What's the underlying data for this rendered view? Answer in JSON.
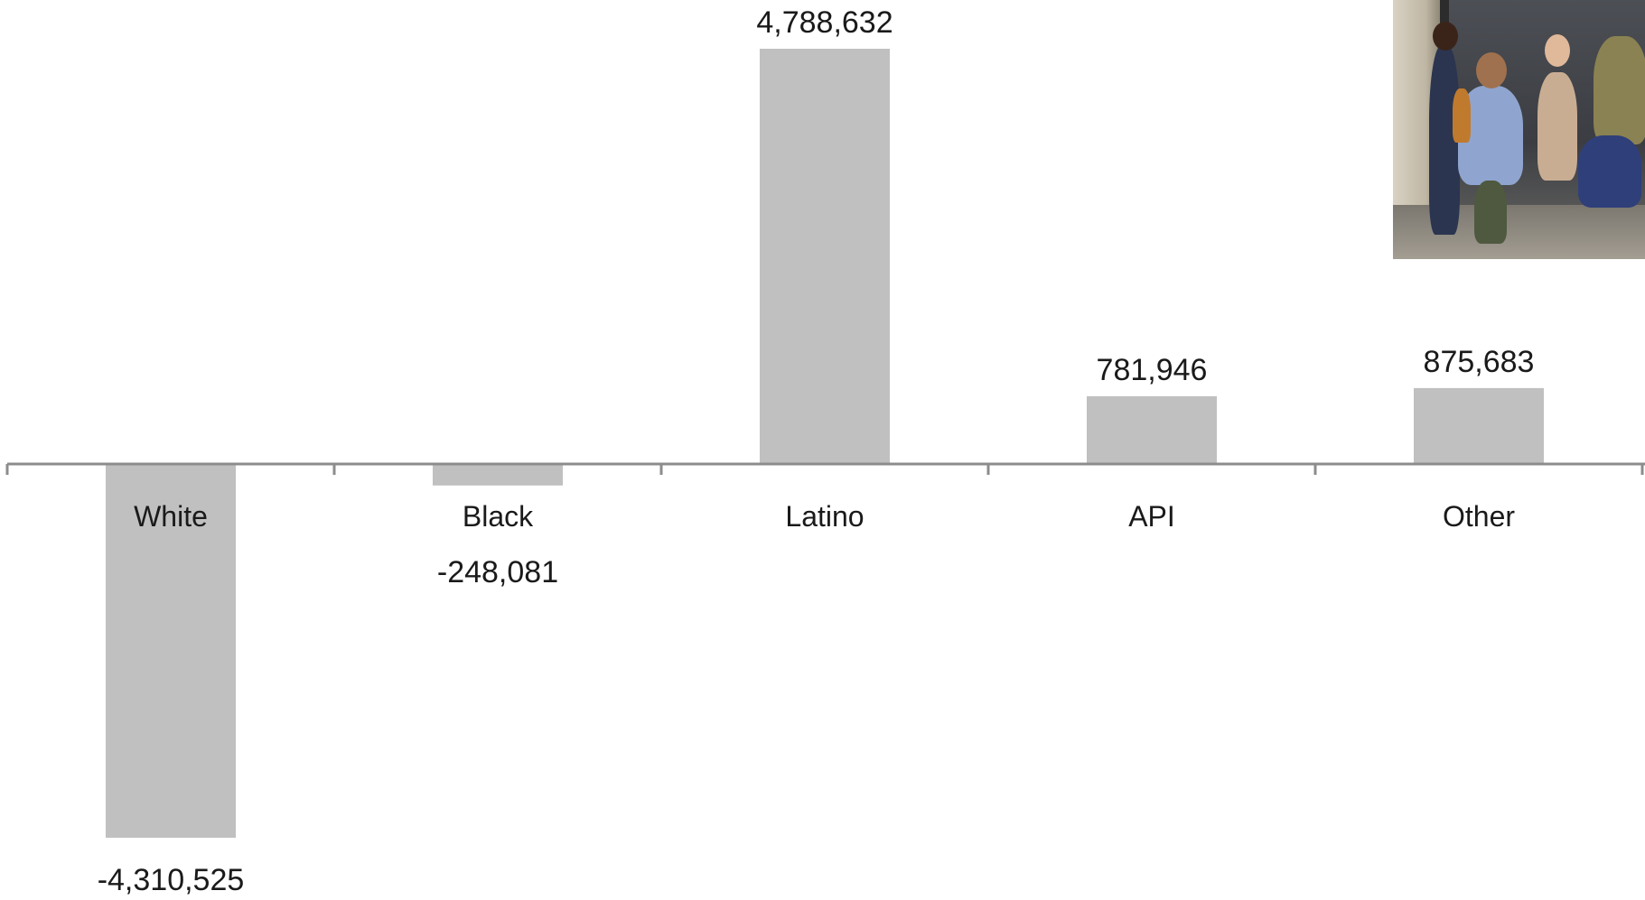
{
  "chart_data": {
    "type": "bar",
    "categories": [
      "White",
      "Black",
      "Latino",
      "API",
      "Other"
    ],
    "values": [
      -4310525,
      -248081,
      4788632,
      781946,
      875683
    ],
    "value_labels": [
      "-4,310,525",
      "-248,081",
      "4,788,632",
      "781,946",
      "875,683"
    ],
    "title": "",
    "xlabel": "",
    "ylabel": "",
    "ylim": [
      -4310525,
      4788632
    ],
    "grid": false,
    "bar_color": "#c0c0c0",
    "axis_color": "#8c8c8c"
  },
  "photo": {
    "icon": "students-running-photo"
  }
}
